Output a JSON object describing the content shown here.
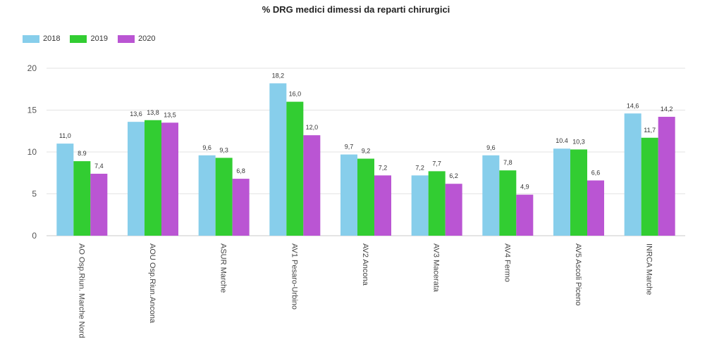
{
  "chart_data": {
    "type": "bar",
    "title": "% DRG medici dimessi da reparti chirurgici",
    "xlabel": "",
    "ylabel": "",
    "ylim": [
      0,
      20
    ],
    "yticks": [
      0,
      5,
      10,
      15,
      20
    ],
    "grid": true,
    "legend_position": "top-left",
    "categories": [
      "AO Osp.Riun. Marche Nord",
      "AOU Osp.Riun.Ancona",
      "ASUR Marche",
      "AV1 Pesaro-Urbino",
      "AV2 Ancona",
      "AV3 Macerata",
      "AV4 Fermo",
      "AV5 Ascoli Piceno",
      "INRCA Marche"
    ],
    "series": [
      {
        "name": "2018",
        "color": "#87ceeb",
        "values": [
          11.0,
          13.6,
          9.6,
          18.2,
          9.7,
          7.2,
          9.6,
          10.4,
          14.6
        ],
        "labels": [
          "11,0",
          "13,6",
          "9,6",
          "18,2",
          "9,7",
          "7,2",
          "9,6",
          "10.4",
          "14,6"
        ]
      },
      {
        "name": "2019",
        "color": "#32cd32",
        "values": [
          8.9,
          13.8,
          9.3,
          16.0,
          9.2,
          7.7,
          7.8,
          10.3,
          11.7
        ],
        "labels": [
          "8.9",
          "13,8",
          "9,3",
          "16,0",
          "9,2",
          "7,7",
          "7,8",
          "10,3",
          "11,7"
        ]
      },
      {
        "name": "2020",
        "color": "#ba55d3",
        "values": [
          7.4,
          13.5,
          6.8,
          12.0,
          7.2,
          6.2,
          4.9,
          6.6,
          14.2
        ],
        "labels": [
          "7,4",
          "13,5",
          "6,8",
          "12,0",
          "7,2",
          "6,2",
          "4,9",
          "6,6",
          "14,2"
        ]
      }
    ]
  }
}
